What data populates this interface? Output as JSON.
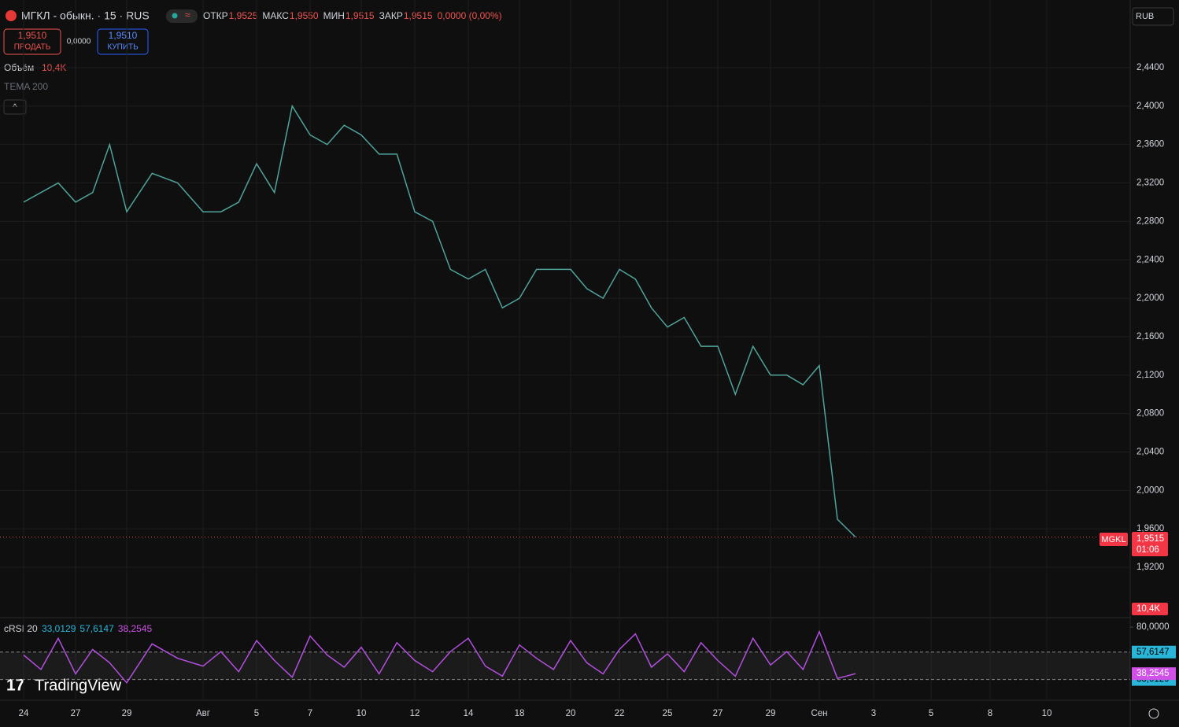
{
  "ui": {
    "sell_price": "1,9510",
    "sell_label": "ПРОДАТЬ",
    "spread": "0,0000",
    "buy_price": "1,9510",
    "buy_label": "КУПИТЬ",
    "ohlc": [
      {
        "label": "ОТКР",
        "value": "1,9525"
      },
      {
        "label": "МАКС",
        "value": "1,9550"
      },
      {
        "label": "МИН",
        "value": "1,9515"
      },
      {
        "label": "ЗАКР",
        "value": "1,9515"
      }
    ],
    "change": "0,0000 (0,00%)",
    "volume_label": "Объём",
    "volume_value": "10,4K",
    "tema": "TEMA 200",
    "currency": "RUB",
    "symbol_tag": "MGKL",
    "price_tag": "1,9515",
    "countdown": "01:06",
    "volume_tag": "10,4K",
    "brand": "TradingView"
  },
  "chart_data": [
    {
      "type": "line",
      "title": "МГКЛ - обыкн. · 15 · RUS",
      "categories": [
        "24",
        null,
        null,
        "27",
        null,
        null,
        "29",
        null,
        null,
        "Авг",
        null,
        null,
        "5",
        null,
        null,
        "7",
        null,
        null,
        "10",
        null,
        null,
        "12",
        null,
        null,
        "14",
        null,
        null,
        "18",
        null,
        null,
        "20",
        null,
        null,
        "22",
        null,
        null,
        "25",
        null,
        null,
        "27",
        null,
        null,
        "29",
        null,
        null,
        "Сен",
        null,
        null,
        "3",
        null,
        null,
        "5",
        null,
        null,
        "8",
        null,
        null,
        "10"
      ],
      "series": [
        {
          "color": "#4fa39a",
          "values": [
            2.3,
            2.31,
            2.32,
            2.3,
            2.31,
            2.36,
            2.29,
            2.33,
            2.32,
            2.29,
            2.29,
            2.3,
            2.34,
            2.31,
            2.4,
            2.37,
            2.36,
            2.38,
            2.37,
            2.35,
            2.35,
            2.29,
            2.28,
            2.23,
            2.22,
            2.23,
            2.19,
            2.2,
            2.23,
            2.23,
            2.23,
            2.21,
            2.2,
            2.23,
            2.22,
            2.19,
            2.17,
            2.18,
            2.15,
            2.15,
            2.1,
            2.15,
            2.12,
            2.12,
            2.11,
            2.13,
            1.97,
            1.9515,
            null,
            null,
            null,
            null,
            null,
            null,
            null,
            null,
            null,
            null
          ]
        }
      ],
      "ylim": [
        1.8709,
        2.5063
      ],
      "yticks": [
        {
          "value": 2.44,
          "label": "2,4400"
        },
        {
          "value": 2.4,
          "label": "2,4000"
        },
        {
          "value": 2.36,
          "label": "2,3600"
        },
        {
          "value": 2.32,
          "label": "2,3200"
        },
        {
          "value": 2.28,
          "label": "2,2800"
        },
        {
          "value": 2.24,
          "label": "2,2400"
        },
        {
          "value": 2.2,
          "label": "2,2000"
        },
        {
          "value": 2.16,
          "label": "2,1600"
        },
        {
          "value": 2.12,
          "label": "2,1200"
        },
        {
          "value": 2.08,
          "label": "2,0800"
        },
        {
          "value": 2.04,
          "label": "2,0400"
        },
        {
          "value": 2.0,
          "label": "2,0000"
        },
        {
          "value": 1.96,
          "label": "1,9600"
        },
        {
          "value": 1.92,
          "label": "1,9200"
        }
      ],
      "grid": true
    },
    {
      "type": "line",
      "title": "cRSI 20",
      "series": [
        {
          "color": "#b44fe0",
          "values": [
            55,
            42,
            70,
            38,
            60,
            48,
            30,
            65,
            52,
            45,
            58,
            40,
            68,
            50,
            35,
            72,
            55,
            44,
            62,
            38,
            66,
            50,
            40,
            58,
            70,
            45,
            36,
            64,
            52,
            42,
            68,
            48,
            38,
            60,
            74,
            44,
            56,
            40,
            66,
            50,
            36,
            70,
            46,
            58,
            42,
            76,
            34,
            38.2545,
            null,
            null,
            null,
            null,
            null,
            null,
            null,
            null,
            null,
            null
          ]
        }
      ],
      "bands": [
        {
          "value": 33.0129,
          "label": "33,0129",
          "color": "#29b6d8"
        },
        {
          "value": 57.6147,
          "label": "57,6147",
          "color": "#29b6d8"
        }
      ],
      "last": {
        "value": 38.2545,
        "label": "38,2545",
        "color": "#d050e8"
      },
      "ylim": [
        20,
        85
      ],
      "yticks": [
        {
          "value": 80,
          "label": "80,0000"
        }
      ]
    }
  ]
}
